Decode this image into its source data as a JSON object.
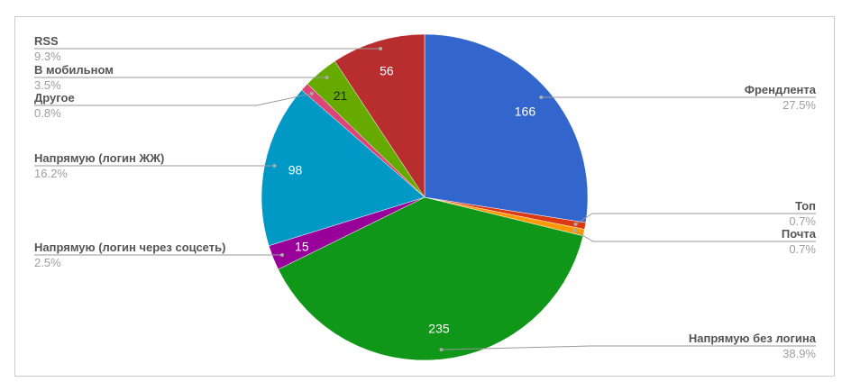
{
  "chart_data": {
    "type": "pie",
    "legend": "labeled slices with leader lines",
    "slices": [
      {
        "label": "Френдлента",
        "value": 166,
        "percent": "27.5%",
        "value_label": "166",
        "color": "#3366cc"
      },
      {
        "label": "Топ",
        "value": 4,
        "percent": "0.7%",
        "value_label": "",
        "color": "#dc3912"
      },
      {
        "label": "Почта",
        "value": 4,
        "percent": "0.7%",
        "value_label": "",
        "color": "#ff9900"
      },
      {
        "label": "Напрямую без логина",
        "value": 235,
        "percent": "38.9%",
        "value_label": "235",
        "color": "#109618"
      },
      {
        "label": "Напрямую (логин через соцсеть)",
        "value": 15,
        "percent": "2.5%",
        "value_label": "15",
        "color": "#990099"
      },
      {
        "label": "Напрямую (логин ЖЖ)",
        "value": 98,
        "percent": "16.2%",
        "value_label": "98",
        "color": "#0099c6"
      },
      {
        "label": "Другое",
        "value": 5,
        "percent": "0.8%",
        "value_label": "",
        "color": "#dd4477"
      },
      {
        "label": "В мобильном",
        "value": 21,
        "percent": "3.5%",
        "value_label": "21",
        "color": "#66aa00"
      },
      {
        "label": "RSS",
        "value": 56,
        "percent": "9.3%",
        "value_label": "56",
        "color": "#b82e2e"
      }
    ]
  }
}
